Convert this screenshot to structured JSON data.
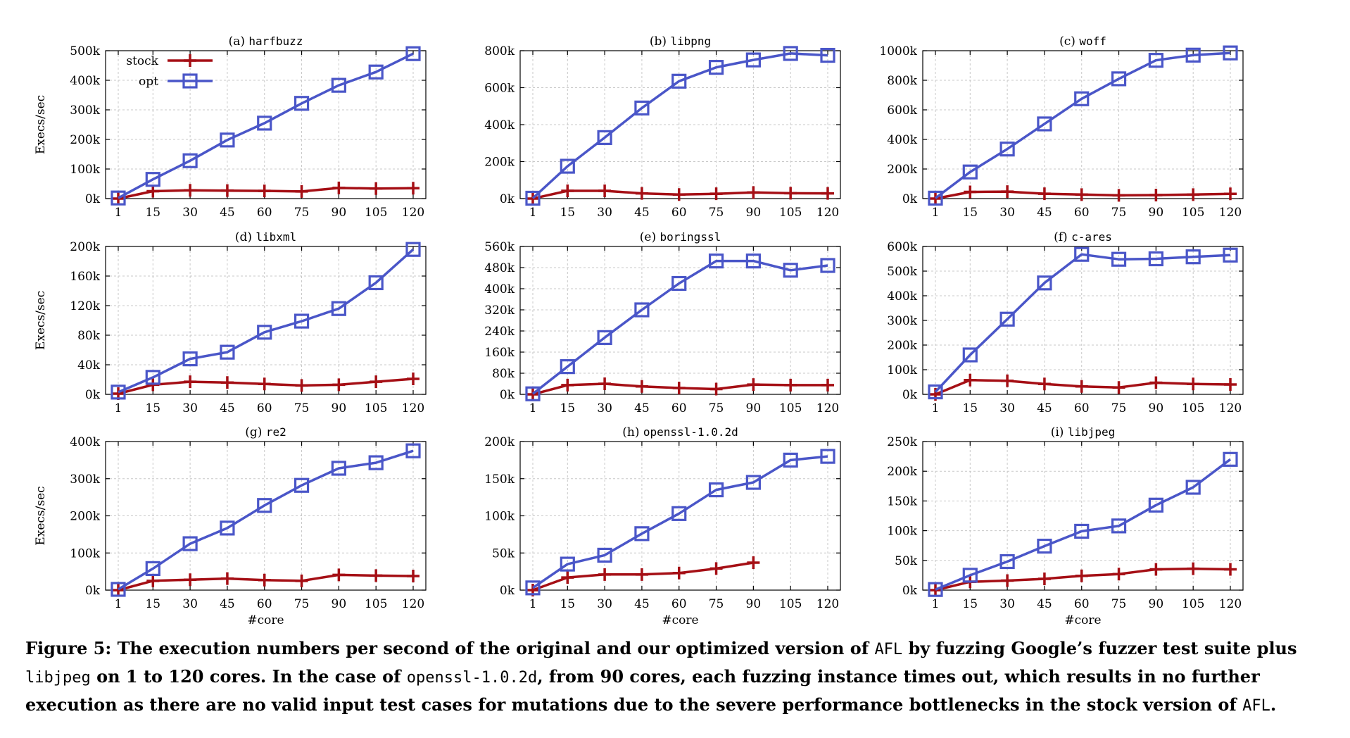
{
  "colors": {
    "stock": "#a50f15",
    "opt": "#4a56c8",
    "grid": "#c8c8c8",
    "axis": "#000000"
  },
  "chart_data": [
    {
      "type": "line",
      "title_prefix": "(a) ",
      "title_name": "harfbuzz",
      "ylabel": "Execs/sec",
      "xlabel": "",
      "x": [
        1,
        15,
        30,
        45,
        60,
        75,
        90,
        105,
        120
      ],
      "xticks": [
        "1",
        "15",
        "30",
        "45",
        "60",
        "75",
        "90",
        "105",
        "120"
      ],
      "ylim": [
        0,
        500000
      ],
      "yticks": [
        0,
        100000,
        200000,
        300000,
        400000,
        500000
      ],
      "yticklabels": [
        "0k",
        "100k",
        "200k",
        "300k",
        "400k",
        "500k"
      ],
      "grid": true,
      "legend": "top-left",
      "series": [
        {
          "name": "stock",
          "values": [
            0,
            25000,
            28000,
            27000,
            26000,
            24000,
            36000,
            34000,
            35000
          ]
        },
        {
          "name": "opt",
          "values": [
            2000,
            65000,
            128000,
            198000,
            255000,
            322000,
            383000,
            428000,
            490000
          ]
        }
      ]
    },
    {
      "type": "line",
      "title_prefix": "(b) ",
      "title_name": "libpng",
      "ylabel": "",
      "xlabel": "",
      "x": [
        1,
        15,
        30,
        45,
        60,
        75,
        90,
        105,
        120
      ],
      "xticks": [
        "1",
        "15",
        "30",
        "45",
        "60",
        "75",
        "90",
        "105",
        "120"
      ],
      "ylim": [
        0,
        800000
      ],
      "yticks": [
        0,
        200000,
        400000,
        600000,
        800000
      ],
      "yticklabels": [
        "0k",
        "200k",
        "400k",
        "600k",
        "800k"
      ],
      "grid": true,
      "series": [
        {
          "name": "stock",
          "values": [
            0,
            42000,
            42000,
            28000,
            22000,
            26000,
            33000,
            29000,
            28000
          ]
        },
        {
          "name": "opt",
          "values": [
            2000,
            175000,
            330000,
            490000,
            635000,
            710000,
            750000,
            785000,
            775000
          ]
        }
      ]
    },
    {
      "type": "line",
      "title_prefix": "(c) ",
      "title_name": "woff",
      "ylabel": "",
      "xlabel": "",
      "x": [
        1,
        15,
        30,
        45,
        60,
        75,
        90,
        105,
        120
      ],
      "xticks": [
        "1",
        "15",
        "30",
        "45",
        "60",
        "75",
        "90",
        "105",
        "120"
      ],
      "ylim": [
        0,
        1000000
      ],
      "yticks": [
        0,
        200000,
        400000,
        600000,
        800000,
        1000000
      ],
      "yticklabels": [
        "0k",
        "200k",
        "400k",
        "600k",
        "800k",
        "1000k"
      ],
      "grid": true,
      "series": [
        {
          "name": "stock",
          "values": [
            0,
            45000,
            47000,
            33000,
            27000,
            22000,
            24000,
            27000,
            32000
          ]
        },
        {
          "name": "opt",
          "values": [
            3000,
            180000,
            335000,
            505000,
            675000,
            810000,
            935000,
            970000,
            985000
          ]
        }
      ]
    },
    {
      "type": "line",
      "title_prefix": "(d) ",
      "title_name": "libxml",
      "ylabel": "Execs/sec",
      "xlabel": "",
      "x": [
        1,
        15,
        30,
        45,
        60,
        75,
        90,
        105,
        120
      ],
      "xticks": [
        "1",
        "15",
        "30",
        "45",
        "60",
        "75",
        "90",
        "105",
        "120"
      ],
      "ylim": [
        0,
        200000
      ],
      "yticks": [
        0,
        40000,
        80000,
        120000,
        160000,
        200000
      ],
      "yticklabels": [
        "0k",
        "40k",
        "80k",
        "120k",
        "160k",
        "200k"
      ],
      "grid": true,
      "series": [
        {
          "name": "stock",
          "values": [
            1000,
            13000,
            17000,
            16000,
            14000,
            12000,
            13000,
            17000,
            21000
          ]
        },
        {
          "name": "opt",
          "values": [
            3000,
            23000,
            48000,
            57000,
            84000,
            99000,
            116000,
            151000,
            196000
          ]
        }
      ]
    },
    {
      "type": "line",
      "title_prefix": "(e) ",
      "title_name": "boringssl",
      "ylabel": "",
      "xlabel": "",
      "x": [
        1,
        15,
        30,
        45,
        60,
        75,
        90,
        105,
        120
      ],
      "xticks": [
        "1",
        "15",
        "30",
        "45",
        "60",
        "75",
        "90",
        "105",
        "120"
      ],
      "ylim": [
        0,
        560000
      ],
      "yticks": [
        0,
        80000,
        160000,
        240000,
        320000,
        400000,
        480000,
        560000
      ],
      "yticklabels": [
        "0k",
        "80k",
        "160k",
        "240k",
        "320k",
        "400k",
        "480k",
        "560k"
      ],
      "grid": true,
      "series": [
        {
          "name": "stock",
          "values": [
            0,
            35000,
            40000,
            30000,
            24000,
            20000,
            37000,
            35000,
            35000
          ]
        },
        {
          "name": "opt",
          "values": [
            2000,
            105000,
            215000,
            320000,
            420000,
            505000,
            505000,
            470000,
            488000
          ]
        }
      ]
    },
    {
      "type": "line",
      "title_prefix": "(f) ",
      "title_name": "c-ares",
      "ylabel": "",
      "xlabel": "",
      "x": [
        1,
        15,
        30,
        45,
        60,
        75,
        90,
        105,
        120
      ],
      "xticks": [
        "1",
        "15",
        "30",
        "45",
        "60",
        "75",
        "90",
        "105",
        "120"
      ],
      "ylim": [
        0,
        600000
      ],
      "yticks": [
        0,
        100000,
        200000,
        300000,
        400000,
        500000,
        600000
      ],
      "yticklabels": [
        "0k",
        "100k",
        "200k",
        "300k",
        "400k",
        "500k",
        "600k"
      ],
      "grid": true,
      "series": [
        {
          "name": "stock",
          "values": [
            0,
            58000,
            55000,
            42000,
            32000,
            28000,
            47000,
            42000,
            40000
          ]
        },
        {
          "name": "opt",
          "values": [
            10000,
            160000,
            305000,
            452000,
            568000,
            548000,
            550000,
            558000,
            565000
          ]
        }
      ]
    },
    {
      "type": "line",
      "title_prefix": "(g) ",
      "title_name": "re2",
      "ylabel": "Execs/sec",
      "xlabel": "#core",
      "x": [
        1,
        15,
        30,
        45,
        60,
        75,
        90,
        105,
        120
      ],
      "xticks": [
        "1",
        "15",
        "30",
        "45",
        "60",
        "75",
        "90",
        "105",
        "120"
      ],
      "ylim": [
        0,
        400000
      ],
      "yticks": [
        0,
        100000,
        200000,
        300000,
        400000
      ],
      "yticklabels": [
        "0k",
        "100k",
        "200k",
        "300k",
        "400k"
      ],
      "grid": true,
      "series": [
        {
          "name": "stock",
          "values": [
            0,
            25000,
            28000,
            31000,
            27000,
            25000,
            41000,
            39000,
            38000
          ]
        },
        {
          "name": "opt",
          "values": [
            2000,
            58000,
            125000,
            167000,
            228000,
            282000,
            328000,
            343000,
            375000
          ]
        }
      ]
    },
    {
      "type": "line",
      "title_prefix": "(h) ",
      "title_name": "openssl-1.0.2d",
      "ylabel": "",
      "xlabel": "#core",
      "x": [
        1,
        15,
        30,
        45,
        60,
        75,
        90,
        105,
        120
      ],
      "xticks": [
        "1",
        "15",
        "30",
        "45",
        "60",
        "75",
        "90",
        "105",
        "120"
      ],
      "ylim": [
        0,
        200000
      ],
      "yticks": [
        0,
        50000,
        100000,
        150000,
        200000
      ],
      "yticklabels": [
        "0k",
        "50k",
        "100k",
        "150k",
        "200k"
      ],
      "grid": true,
      "series": [
        {
          "name": "stock",
          "values": [
            0,
            17000,
            21000,
            21000,
            23000,
            29000,
            37000,
            null,
            null
          ]
        },
        {
          "name": "opt",
          "values": [
            3000,
            35000,
            47000,
            76000,
            103000,
            135000,
            145000,
            175000,
            180000
          ]
        }
      ]
    },
    {
      "type": "line",
      "title_prefix": "(i) ",
      "title_name": "libjpeg",
      "ylabel": "",
      "xlabel": "#core",
      "x": [
        1,
        15,
        30,
        45,
        60,
        75,
        90,
        105,
        120
      ],
      "xticks": [
        "1",
        "15",
        "30",
        "45",
        "60",
        "75",
        "90",
        "105",
        "120"
      ],
      "ylim": [
        0,
        250000
      ],
      "yticks": [
        0,
        50000,
        100000,
        150000,
        200000,
        250000
      ],
      "yticklabels": [
        "0k",
        "50k",
        "100k",
        "150k",
        "200k",
        "250k"
      ],
      "grid": true,
      "series": [
        {
          "name": "stock",
          "values": [
            0,
            14000,
            16000,
            19000,
            24000,
            27000,
            35000,
            36000,
            35000
          ]
        },
        {
          "name": "opt",
          "values": [
            1000,
            25000,
            48000,
            74000,
            99000,
            108000,
            143000,
            173000,
            220000
          ]
        }
      ]
    }
  ],
  "caption": {
    "p1": "Figure 5: The execution numbers per second of the original and our optimized version of ",
    "m1": "AFL",
    "p2": " by fuzzing Google’s fuzzer test suite plus ",
    "m2": "libjpeg",
    "p3": " on 1 to 120 cores. In the case of ",
    "m3": "openssl-1.0.2d",
    "p4": ", from 90 cores, each fuzzing instance times out, which results in no further execution as there are no valid input test cases for mutations due to the severe performance bottlenecks in the stock version of ",
    "m4": "AFL",
    "p5": "."
  }
}
